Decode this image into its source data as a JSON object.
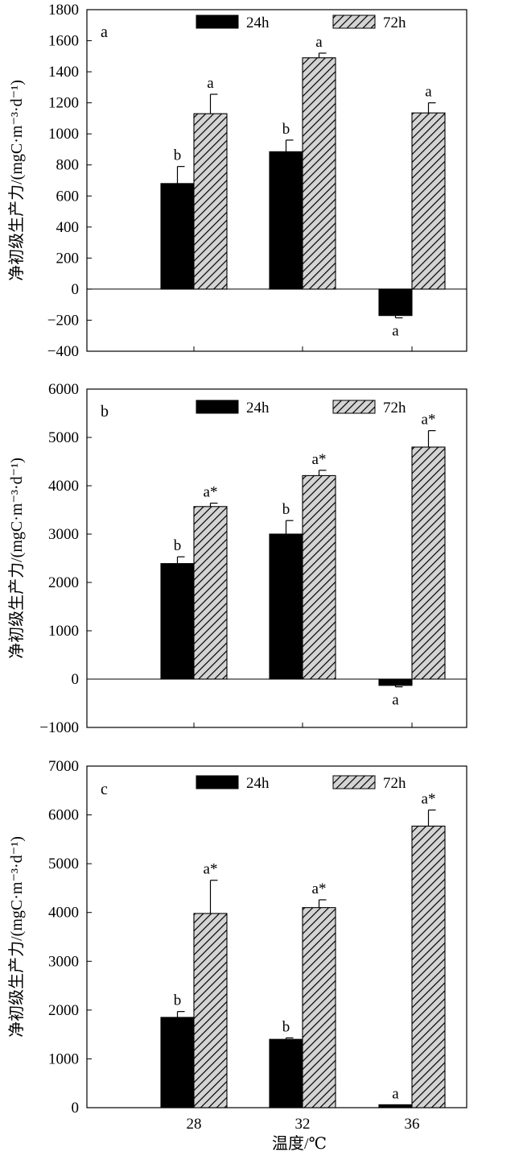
{
  "figure": {
    "xlabel": "温度/℃",
    "ylabel": "净初级生产力/(mgC·m⁻³·d⁻¹)"
  },
  "colors": {
    "bar_24h": "#000000",
    "bar_72h_fill": "#d4d4d4",
    "bar_72h_hatch": "#000000",
    "axis": "#000000"
  },
  "chart_data": [
    {
      "type": "bar",
      "panel": "a",
      "categories": [
        "28",
        "32",
        "36"
      ],
      "ylim": [
        -400,
        1800
      ],
      "yticks": [
        -400,
        -200,
        0,
        200,
        400,
        600,
        800,
        1000,
        1200,
        1400,
        1600,
        1800
      ],
      "xlabel": "",
      "ylabel": "净初级生产力/(mgC·m⁻³·d⁻¹)",
      "legend": "top",
      "grid": false,
      "series": [
        {
          "name": "24h",
          "values": [
            680,
            885,
            -170
          ],
          "errors": [
            110,
            75,
            15
          ],
          "labels": [
            "b",
            "b",
            "a"
          ]
        },
        {
          "name": "72h",
          "values": [
            1130,
            1490,
            1135
          ],
          "errors": [
            125,
            30,
            65
          ],
          "labels": [
            "a",
            "a",
            "a"
          ]
        }
      ]
    },
    {
      "type": "bar",
      "panel": "b",
      "categories": [
        "28",
        "32",
        "36"
      ],
      "ylim": [
        -1000,
        6000
      ],
      "yticks": [
        -1000,
        0,
        1000,
        2000,
        3000,
        4000,
        5000,
        6000
      ],
      "xlabel": "",
      "ylabel": "净初级生产力/(mgC·m⁻³·d⁻¹)",
      "legend": "top",
      "grid": false,
      "series": [
        {
          "name": "24h",
          "values": [
            2390,
            3000,
            -130
          ],
          "errors": [
            140,
            280,
            30
          ],
          "labels": [
            "b",
            "b",
            "a"
          ]
        },
        {
          "name": "72h",
          "values": [
            3570,
            4210,
            4800
          ],
          "errors": [
            70,
            110,
            340
          ],
          "labels": [
            "a*",
            "a*",
            "a*"
          ]
        }
      ]
    },
    {
      "type": "bar",
      "panel": "c",
      "categories": [
        "28",
        "32",
        "36"
      ],
      "ylim": [
        0,
        7000
      ],
      "yticks": [
        0,
        1000,
        2000,
        3000,
        4000,
        5000,
        6000,
        7000
      ],
      "xlabel": "温度/℃",
      "ylabel": "净初级生产力/(mgC·m⁻³·d⁻¹)",
      "legend": "top",
      "grid": false,
      "series": [
        {
          "name": "24h",
          "values": [
            1850,
            1400,
            60
          ],
          "errors": [
            120,
            30,
            0
          ],
          "labels": [
            "b",
            "b",
            "a"
          ]
        },
        {
          "name": "72h",
          "values": [
            3980,
            4100,
            5770
          ],
          "errors": [
            680,
            160,
            330
          ],
          "labels": [
            "a*",
            "a*",
            "a*"
          ]
        }
      ]
    }
  ]
}
